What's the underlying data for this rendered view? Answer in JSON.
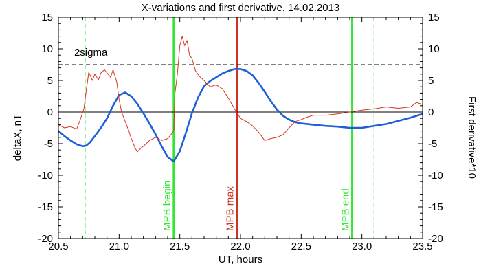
{
  "chart_data": {
    "type": "line",
    "title": "X-variations and first derivative, 14.02.2013",
    "xlabel": "UT, hours",
    "ylabel_left": "deltaX, nT",
    "ylabel_right": "First derivative*10",
    "xlim": [
      20.5,
      23.5
    ],
    "ylim": [
      -20,
      15
    ],
    "xticks": [
      20.5,
      21.0,
      21.5,
      22.0,
      22.5,
      23.0,
      23.5
    ],
    "xtick_labels": [
      "20.5",
      "21.0",
      "21.5",
      "22.0",
      "22.5",
      "23.0",
      "23.5"
    ],
    "yticks": [
      -20,
      -15,
      -10,
      -5,
      0,
      5,
      10,
      15
    ],
    "ytick_labels": [
      "-20",
      "-15",
      "-10",
      "-5",
      "0",
      "5",
      "10",
      "15"
    ],
    "grid": false,
    "colors": {
      "deltaX": "#1f5fd6",
      "derivative": "#d9341c",
      "mpb_lines": "#33e633",
      "mpb_max": "#cc3322",
      "axis_text": "#000000"
    },
    "zero_line": 0,
    "threshold": {
      "label": "2sigma",
      "y": 7.5
    },
    "series": [
      {
        "key": "deltaX",
        "x": [
          20.5,
          20.55,
          20.6,
          20.65,
          20.7,
          20.73,
          20.76,
          20.8,
          20.85,
          20.9,
          20.95,
          21.0,
          21.05,
          21.1,
          21.15,
          21.2,
          21.25,
          21.3,
          21.35,
          21.4,
          21.45,
          21.5,
          21.55,
          21.6,
          21.65,
          21.7,
          21.75,
          21.8,
          21.85,
          21.9,
          21.95,
          22.0,
          22.05,
          22.1,
          22.15,
          22.2,
          22.25,
          22.3,
          22.35,
          22.4,
          22.45,
          22.5,
          22.6,
          22.7,
          22.8,
          22.9,
          23.0,
          23.1,
          23.2,
          23.3,
          23.4,
          23.5
        ],
        "values": [
          -3.0,
          -3.8,
          -4.5,
          -5.1,
          -5.4,
          -5.3,
          -4.8,
          -3.8,
          -2.5,
          -1.0,
          1.0,
          2.7,
          3.1,
          2.5,
          1.3,
          -0.2,
          -1.8,
          -3.5,
          -5.4,
          -7.1,
          -7.8,
          -6.2,
          -3.3,
          -0.2,
          2.3,
          4.1,
          4.9,
          5.5,
          6.1,
          6.5,
          6.8,
          6.8,
          6.5,
          5.8,
          4.6,
          3.2,
          1.7,
          0.4,
          -0.6,
          -1.2,
          -1.6,
          -1.8,
          -2.0,
          -2.2,
          -2.3,
          -2.5,
          -2.5,
          -2.2,
          -1.9,
          -1.4,
          -0.9,
          -0.3
        ]
      },
      {
        "key": "derivative",
        "x": [
          20.5,
          20.55,
          20.6,
          20.65,
          20.68,
          20.71,
          20.73,
          20.75,
          20.78,
          20.8,
          20.83,
          20.85,
          20.88,
          20.9,
          20.93,
          20.95,
          20.98,
          21.0,
          21.02,
          21.05,
          21.08,
          21.1,
          21.13,
          21.15,
          21.18,
          21.2,
          21.25,
          21.3,
          21.35,
          21.4,
          21.43,
          21.45,
          21.46,
          21.48,
          21.5,
          21.52,
          21.54,
          21.56,
          21.58,
          21.6,
          21.63,
          21.66,
          21.7,
          21.75,
          21.8,
          21.85,
          21.9,
          21.95,
          22.0,
          22.05,
          22.1,
          22.15,
          22.2,
          22.25,
          22.3,
          22.35,
          22.4,
          22.45,
          22.5,
          22.55,
          22.6,
          22.7,
          22.8,
          22.9,
          23.0,
          23.1,
          23.2,
          23.3,
          23.4,
          23.45,
          23.5
        ],
        "values": [
          -2.0,
          -2.5,
          -2.3,
          -2.7,
          -1.2,
          0.5,
          3.5,
          6.3,
          5.0,
          6.0,
          5.1,
          6.2,
          6.7,
          6.2,
          5.5,
          6.7,
          4.8,
          2.0,
          0.0,
          -1.5,
          -3.0,
          -4.2,
          -5.6,
          -6.3,
          -5.7,
          -5.4,
          -4.5,
          -4.0,
          -4.5,
          -4.2,
          -3.5,
          -3.0,
          3.0,
          6.0,
          10.5,
          12.0,
          10.5,
          11.3,
          9.0,
          8.5,
          6.5,
          5.7,
          5.0,
          4.0,
          4.3,
          3.7,
          2.2,
          0.5,
          -1.0,
          -1.5,
          -2.2,
          -3.2,
          -4.5,
          -4.2,
          -4.0,
          -3.6,
          -2.5,
          -1.5,
          -1.2,
          -0.8,
          -0.5,
          -0.5,
          -0.3,
          0.0,
          0.3,
          0.5,
          0.8,
          0.6,
          0.8,
          1.5,
          1.2
        ]
      }
    ],
    "markers": [
      {
        "key": "mpb-begin",
        "label": "MPB begin",
        "x": 21.45,
        "kind": "solid",
        "label_bottom_y": -18.8
      },
      {
        "key": "mpb-max",
        "label": "MPB max",
        "x": 21.97,
        "kind": "solid",
        "label_bottom_y": -18.8
      },
      {
        "key": "mpb-end",
        "label": "MPB end",
        "x": 22.92,
        "kind": "solid",
        "label_bottom_y": -18.8
      },
      {
        "key": "dashed-left",
        "label": "",
        "x": 20.72,
        "kind": "dashed"
      },
      {
        "key": "dashed-right",
        "label": "",
        "x": 23.1,
        "kind": "dashed"
      }
    ]
  }
}
